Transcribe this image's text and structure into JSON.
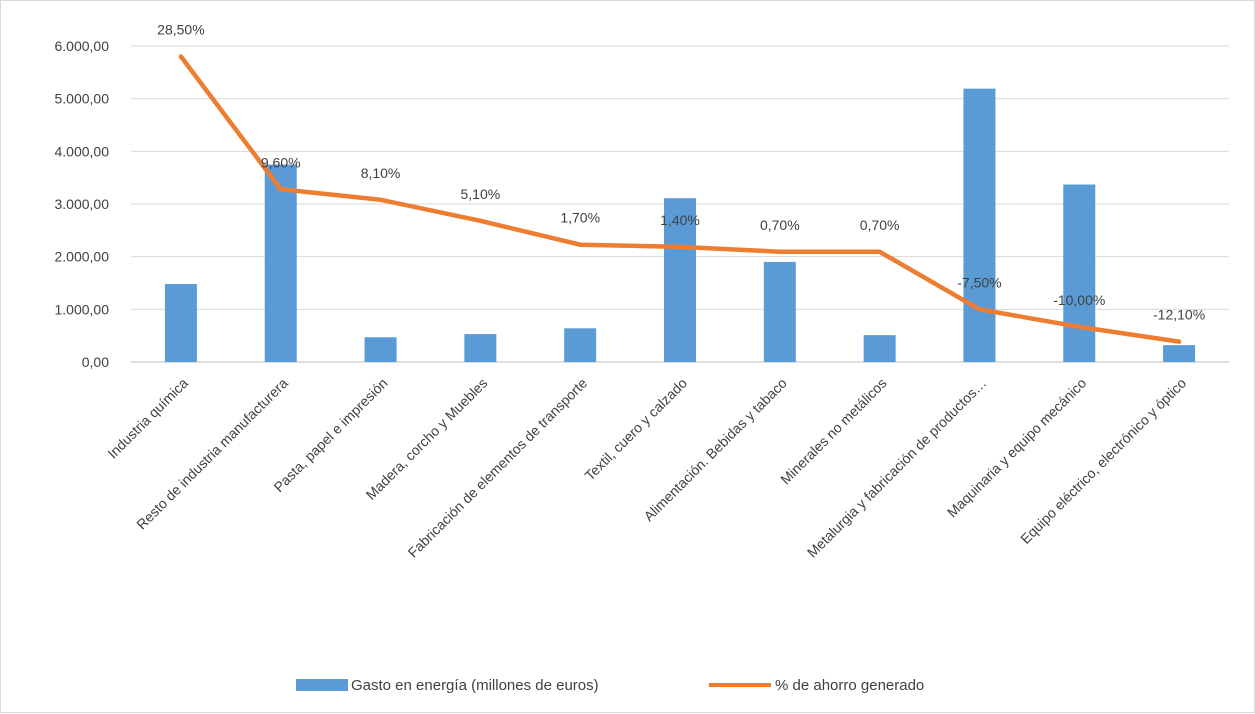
{
  "chart_data": {
    "type": "bar",
    "categories": [
      "Industria química",
      "Resto de industria manufacturera",
      "Pasta, papel e impresión",
      "Madera, corcho y Muebles",
      "Fabricación de elementos de transporte",
      "Textil, cuero y calzado",
      "Alimentación. Bebidas y tabaco",
      "Minerales no metálicos",
      "Metalurgia y fabricación de productos…",
      "Maquinaria y equipo mecánico",
      "Equipo eléctrico, electrónico y óptico"
    ],
    "series": [
      {
        "name": "Gasto en energía (millones de euros)",
        "type": "bar",
        "color": "#5b9bd5",
        "values": [
          1480,
          3750,
          470,
          530,
          640,
          3110,
          1900,
          510,
          5190,
          3370,
          320
        ]
      },
      {
        "name": "% de ahorro generado",
        "type": "line",
        "color": "#ed7d31",
        "values": [
          28.5,
          9.6,
          8.1,
          5.1,
          1.7,
          1.4,
          0.7,
          0.7,
          -7.5,
          -10.0,
          -12.1
        ],
        "labels": [
          "28,50%",
          "9,60%",
          "8,10%",
          "5,10%",
          "1,70%",
          "1,40%",
          "0,70%",
          "0,70%",
          "-7,50%",
          "-10,00%",
          "-12,10%"
        ]
      }
    ],
    "y_axis": {
      "min": 0,
      "max": 6000,
      "ticks": [
        0,
        1000,
        2000,
        3000,
        4000,
        5000,
        6000
      ],
      "tick_labels": [
        "0,00",
        "1.000,00",
        "2.000,00",
        "3.000,00",
        "4.000,00",
        "5.000,00",
        "6.000,00"
      ]
    },
    "secondary_axis": {
      "visible": false,
      "min": -15,
      "max": 30
    },
    "grid": true,
    "legend": "bottom"
  }
}
